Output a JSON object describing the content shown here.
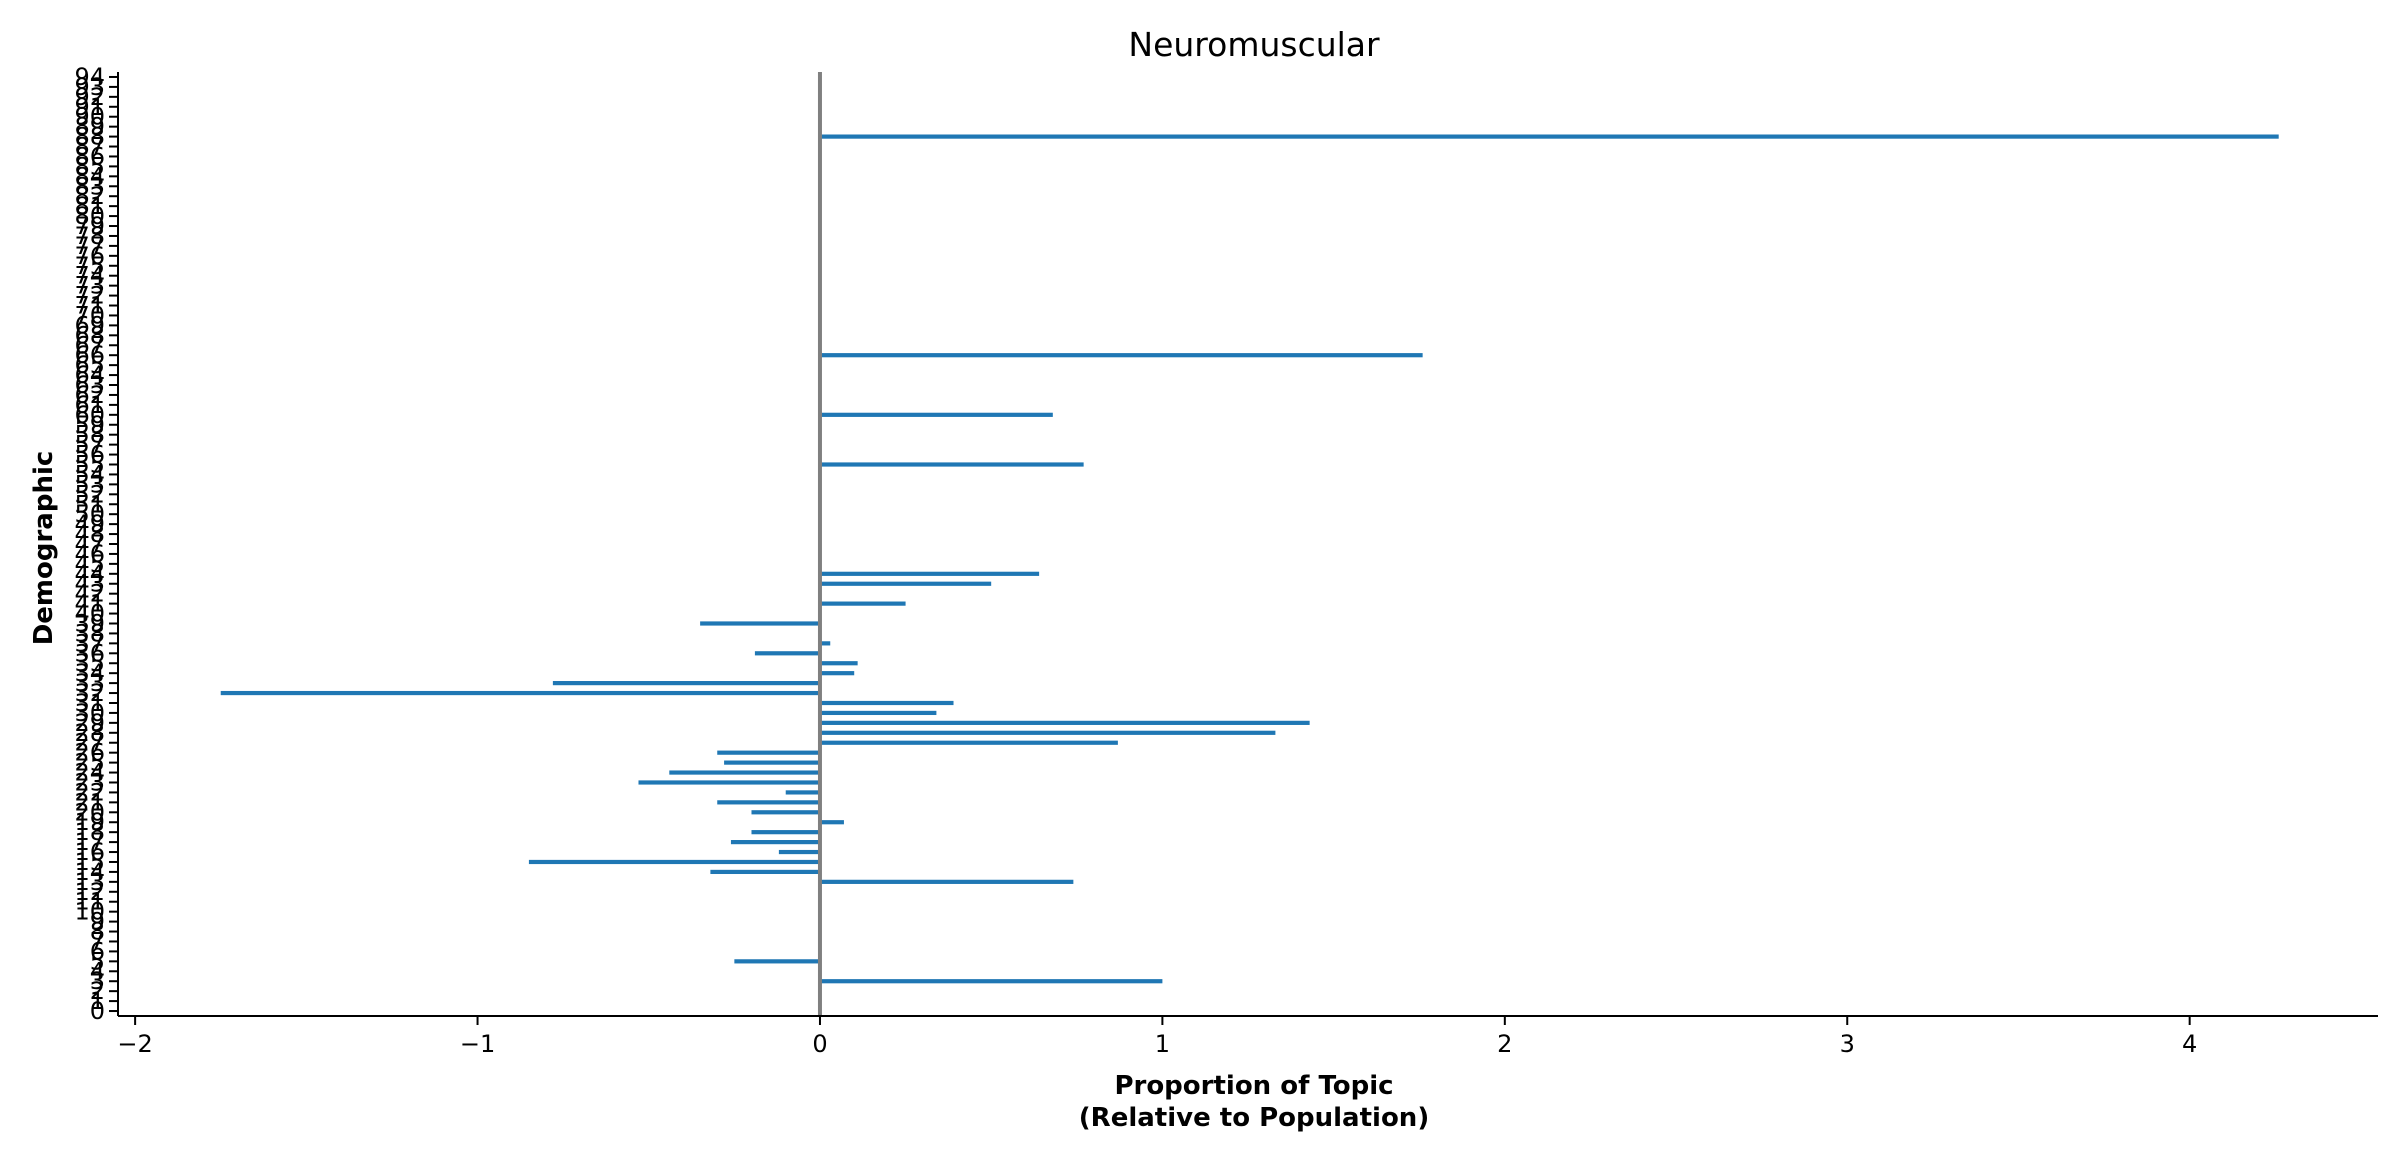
{
  "chart_data": {
    "type": "bar",
    "orientation": "horizontal",
    "title": "Neuromuscular",
    "xlabel": [
      "Proportion of Topic",
      "(Relative to Population)"
    ],
    "ylabel": "Demographic",
    "xlim": [
      -2.05,
      4.55
    ],
    "ylim": [
      -0.5,
      94.5
    ],
    "xticks": [
      -2,
      -1,
      0,
      1,
      2,
      3,
      4
    ],
    "xtick_labels": [
      "−2",
      "−1",
      "0",
      "1",
      "2",
      "3",
      "4"
    ],
    "categories": [
      0,
      1,
      2,
      3,
      4,
      5,
      6,
      7,
      8,
      9,
      10,
      11,
      12,
      13,
      14,
      15,
      16,
      17,
      18,
      19,
      20,
      21,
      22,
      23,
      24,
      25,
      26,
      27,
      28,
      29,
      30,
      31,
      32,
      33,
      34,
      35,
      36,
      37,
      38,
      39,
      40,
      41,
      42,
      43,
      44,
      45,
      46,
      47,
      48,
      49,
      50,
      51,
      52,
      53,
      54,
      55,
      56,
      57,
      58,
      59,
      60,
      61,
      62,
      63,
      64,
      65,
      66,
      67,
      68,
      69,
      70,
      71,
      72,
      73,
      74,
      75,
      76,
      77,
      78,
      79,
      80,
      81,
      82,
      83,
      84,
      85,
      86,
      87,
      88,
      89,
      90,
      91,
      92,
      93,
      94
    ],
    "values": [
      0,
      0,
      0,
      1.0,
      0,
      -0.25,
      0,
      0,
      0,
      0,
      0,
      0,
      0,
      0.74,
      -0.32,
      -0.85,
      -0.12,
      -0.26,
      -0.2,
      0.07,
      -0.2,
      -0.3,
      -0.1,
      -0.53,
      -0.44,
      -0.28,
      -0.3,
      0.87,
      1.33,
      1.43,
      0.34,
      0.39,
      -1.75,
      -0.78,
      0.1,
      0.11,
      -0.19,
      0.03,
      0,
      -0.35,
      0,
      0.25,
      0,
      0.5,
      0.64,
      0,
      0,
      0,
      0,
      0,
      0,
      0,
      0,
      0,
      0,
      0.77,
      0,
      0,
      0,
      0,
      0.68,
      0,
      0,
      0,
      0,
      0,
      1.76,
      0,
      0,
      0,
      0,
      0,
      0,
      0,
      0,
      0,
      0,
      0,
      0,
      0,
      0,
      0,
      0,
      0,
      0,
      0,
      0,
      0,
      4.26,
      0,
      0,
      0,
      0,
      0,
      0
    ],
    "bar_color": "#1f77b4",
    "zero_line_color": "#808080",
    "grid": false,
    "legend": "none"
  }
}
